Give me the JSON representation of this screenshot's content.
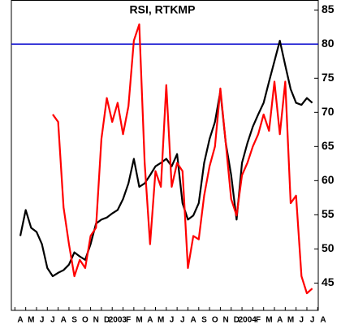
{
  "chart_data": {
    "type": "line",
    "title": "RSI, RTKMP",
    "categories": [
      "A",
      null,
      "M",
      null,
      "J",
      null,
      "J",
      null,
      "A",
      null,
      "S",
      null,
      "O",
      null,
      "N",
      null,
      "D",
      null,
      "2003",
      null,
      "F",
      null,
      "M",
      null,
      "A",
      null,
      "M",
      null,
      "J",
      null,
      "J",
      null,
      "A",
      null,
      "S",
      null,
      "O",
      null,
      "N",
      null,
      "D",
      null,
      "2004",
      null,
      "F",
      null,
      "M",
      null,
      "A",
      null,
      "M",
      null,
      "J",
      null,
      "J",
      null,
      "A",
      null
    ],
    "series": [
      {
        "color": "#000000",
        "values": [
          51.9,
          55.7,
          53.1,
          52.5,
          50.7,
          47.2,
          46,
          46.5,
          46.9,
          47.7,
          49.5,
          48.9,
          48.4,
          50.7,
          53.7,
          54.3,
          54.6,
          55.2,
          55.7,
          57.3,
          59.6,
          63.2,
          59.1,
          59.6,
          60.8,
          62.1,
          62.6,
          63.2,
          62.1,
          63.9,
          56.7,
          54.3,
          54.9,
          56.7,
          62.6,
          66.1,
          68.6,
          73.1,
          65.5,
          60.8,
          54.3,
          62.6,
          65.5,
          67.9,
          69.7,
          71.4,
          74.5,
          77.5,
          80.5,
          76.9,
          73.4,
          71.4,
          71.1,
          72.1,
          71.4,
          null,
          null,
          null
        ]
      },
      {
        "color": "#ff0000",
        "values": [
          null,
          null,
          null,
          null,
          null,
          null,
          69.7,
          68.6,
          56.1,
          50.7,
          46,
          48.4,
          47.2,
          51.9,
          53.1,
          66.1,
          72.1,
          68.6,
          71.4,
          66.8,
          70.9,
          80.5,
          82.9,
          62.6,
          50.7,
          61.4,
          59.1,
          74,
          59.1,
          62.6,
          61.4,
          47.2,
          51.9,
          51.4,
          57.8,
          62.1,
          65,
          73.5,
          65.5,
          57.3,
          54.9,
          60.8,
          62.6,
          65,
          66.8,
          69.7,
          67.3,
          74.5,
          66.8,
          74.5,
          56.7,
          57.8,
          46,
          43.5,
          44.2,
          null,
          null,
          null
        ]
      }
    ],
    "reference_line": {
      "value": 80,
      "color": "#0000cc"
    },
    "ylim": [
      41,
      86.4
    ],
    "yticks": [
      45,
      50,
      55,
      60,
      65,
      70,
      75,
      80,
      85
    ],
    "y_axis_side": "right",
    "grid": false
  }
}
